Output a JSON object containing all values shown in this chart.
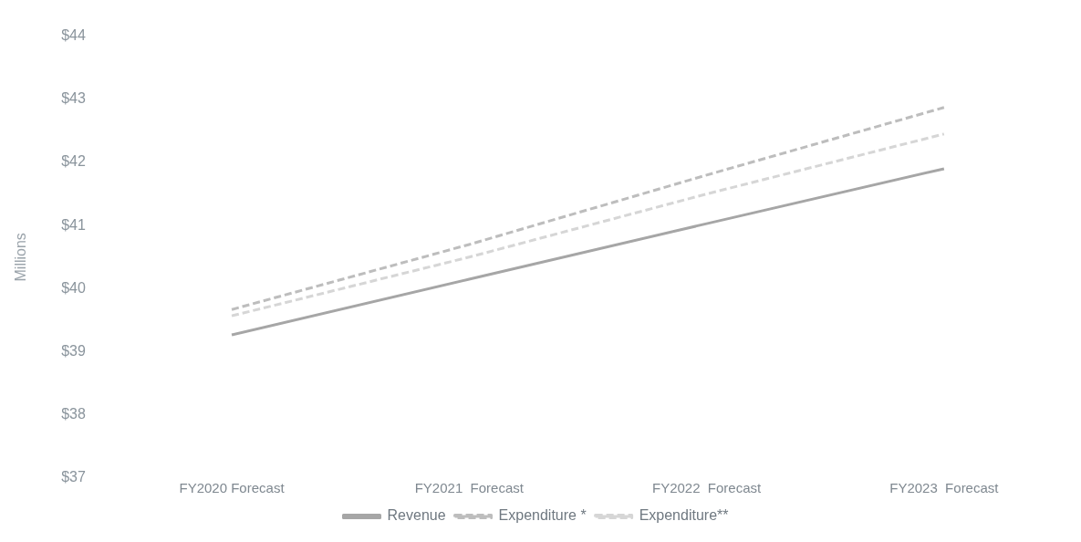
{
  "chart_data": {
    "type": "line",
    "ylabel": "Millions",
    "categories": [
      "FY2020 Forecast",
      "FY2021  Forecast",
      "FY2022  Forecast",
      "FY2023  Forecast"
    ],
    "series": [
      {
        "name": "Revenue",
        "color": "#a6a6a6",
        "line_style": "solid",
        "values": [
          39.27,
          40.15,
          41.03,
          41.9
        ]
      },
      {
        "name": "Expenditure *",
        "color": "#bdbdbd",
        "line_style": "dashed",
        "values": [
          39.67,
          40.7,
          41.8,
          42.87
        ]
      },
      {
        "name": "Expenditure**",
        "color": "#d6d6d6",
        "line_style": "dashed",
        "values": [
          39.57,
          40.5,
          41.5,
          42.45
        ]
      }
    ],
    "ylim": [
      37,
      44
    ],
    "yticks": [
      {
        "value": 37,
        "label": "$37"
      },
      {
        "value": 38,
        "label": "$38"
      },
      {
        "value": 39,
        "label": "$39"
      },
      {
        "value": 40,
        "label": "$40"
      },
      {
        "value": 41,
        "label": "$41"
      },
      {
        "value": 42,
        "label": "$42"
      },
      {
        "value": 43,
        "label": "$43"
      },
      {
        "value": 44,
        "label": "$44"
      }
    ],
    "grid": false,
    "legend": "bottom",
    "marker": "none"
  }
}
